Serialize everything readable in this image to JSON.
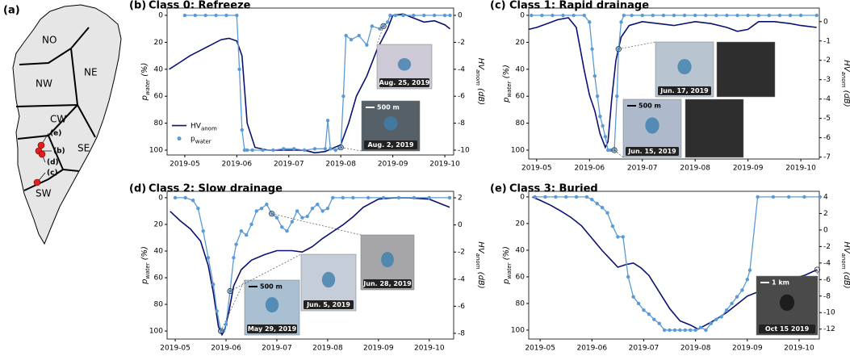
{
  "chart_data": [
    {
      "type": "line",
      "label": "(b)",
      "title": "Class 0: Refreeze",
      "xlim": [
        4.66,
        10.17
      ],
      "xticks": [
        {
          "value": 5,
          "label": "2019-05"
        },
        {
          "value": 6,
          "label": "2019-06"
        },
        {
          "value": 7,
          "label": "2019-07"
        },
        {
          "value": 8,
          "label": "2019-08"
        },
        {
          "value": 9,
          "label": "2019-09"
        },
        {
          "value": 10,
          "label": "2019-10"
        }
      ],
      "ylim": [
        103.6,
        -5.4
      ],
      "yticks": [
        0,
        20,
        40,
        60,
        80,
        100
      ],
      "ylabel": [
        "p",
        "water",
        " (%)"
      ],
      "y2lim": [
        -10.36,
        0.54
      ],
      "y2ticks": [
        0,
        -2,
        -4,
        -6,
        -8,
        -10
      ],
      "y2label": [
        "HV",
        "anom",
        " (dB)"
      ],
      "legend": "center-left",
      "series": [
        {
          "name": [
            "HV",
            "anom"
          ],
          "color": "#0b1170",
          "axis": "y2",
          "x": [
            4.7,
            4.9,
            5.1,
            5.3,
            5.5,
            5.7,
            5.85,
            6.0,
            6.1,
            6.2,
            6.35,
            6.6,
            7.0,
            7.3,
            7.5,
            7.7,
            8.0,
            8.15,
            8.3,
            8.5,
            8.7,
            8.9,
            9.0,
            9.2,
            9.4,
            9.6,
            9.8,
            10.0,
            10.1
          ],
          "values": [
            -4,
            -3.5,
            -3,
            -2.6,
            -2.2,
            -1.8,
            -1.7,
            -1.9,
            -3,
            -8,
            -9.8,
            -10,
            -10,
            -10,
            -10.2,
            -10.1,
            -9.6,
            -8,
            -6,
            -4.5,
            -2.5,
            -1,
            0,
            0.1,
            -0.2,
            -0.5,
            -0.4,
            -0.7,
            -1
          ]
        },
        {
          "name": [
            "p",
            "water"
          ],
          "color": "#5b9bd5",
          "markers": true,
          "x": [
            5.0,
            5.2,
            5.4,
            5.6,
            5.8,
            6.0,
            6.05,
            6.1,
            6.15,
            6.2,
            6.3,
            6.5,
            6.7,
            6.9,
            7.1,
            7.3,
            7.5,
            7.7,
            7.75,
            7.8,
            7.9,
            8.0,
            8.05,
            8.1,
            8.2,
            8.35,
            8.5,
            8.6,
            8.75,
            8.82,
            8.9,
            8.95,
            9.05,
            9.2,
            9.4,
            9.6,
            9.8,
            10.0,
            10.1
          ],
          "values": [
            0,
            0,
            0,
            0,
            0,
            0,
            40,
            85,
            100,
            100,
            100,
            100,
            100,
            99,
            99,
            100,
            99,
            99,
            78,
            99,
            100,
            98,
            60,
            15,
            18,
            15,
            22,
            8,
            10,
            8,
            5,
            0,
            0,
            0,
            0,
            0,
            0,
            0,
            0
          ]
        }
      ],
      "insets": [
        {
          "caption": "Aug. 25, 2019"
        },
        {
          "caption": "Aug. 2, 2019",
          "scale": "500 m"
        }
      ]
    },
    {
      "type": "line",
      "label": "(c)",
      "title": "Class 1: Rapid drainage",
      "xlim": [
        4.85,
        10.35
      ],
      "xticks": [
        {
          "value": 5,
          "label": "2019-05"
        },
        {
          "value": 6,
          "label": "2019-06"
        },
        {
          "value": 7,
          "label": "2019-07"
        },
        {
          "value": 8,
          "label": "2019-08"
        },
        {
          "value": 9,
          "label": "2019-09"
        },
        {
          "value": 10,
          "label": "2019-10"
        }
      ],
      "ylim": [
        106.6,
        -5.4
      ],
      "yticks": [
        0,
        20,
        40,
        60,
        80,
        100
      ],
      "ylabel": [
        "p",
        "water",
        " (%)"
      ],
      "y2lim": [
        -7.1,
        0.7
      ],
      "y2ticks": [
        0,
        -1,
        -2,
        -3,
        -4,
        -5,
        -6,
        -7
      ],
      "y2label": [
        "HV",
        "anom",
        " (dB)"
      ],
      "series": [
        {
          "name": [
            "HV",
            "anom"
          ],
          "color": "#0b1170",
          "axis": "y2",
          "x": [
            4.85,
            5.0,
            5.2,
            5.4,
            5.6,
            5.75,
            5.9,
            6.0,
            6.1,
            6.2,
            6.3,
            6.35,
            6.42,
            6.5,
            6.6,
            6.75,
            7.0,
            7.3,
            7.6,
            8.0,
            8.3,
            8.6,
            8.8,
            9.0,
            9.2,
            9.5,
            9.8,
            10.0,
            10.3
          ],
          "values": [
            -0.4,
            -0.3,
            -0.1,
            0.1,
            0.2,
            -0.3,
            -2.5,
            -3.8,
            -4.6,
            -5.8,
            -6.5,
            -6.2,
            -4,
            -2,
            -0.8,
            -0.2,
            0,
            -0.1,
            -0.2,
            0,
            -0.1,
            -0.3,
            -0.5,
            -0.4,
            0,
            0,
            -0.1,
            -0.2,
            -0.3
          ]
        },
        {
          "name": [
            "p",
            "water"
          ],
          "color": "#5b9bd5",
          "markers": true,
          "x": [
            4.9,
            5.1,
            5.3,
            5.5,
            5.7,
            5.9,
            6.0,
            6.05,
            6.1,
            6.15,
            6.2,
            6.25,
            6.3,
            6.35,
            6.4,
            6.47,
            6.52,
            6.55,
            6.6,
            6.65,
            6.8,
            7.0,
            7.2,
            7.4,
            7.6,
            7.8,
            8.0,
            8.2,
            8.4,
            8.6,
            8.8,
            9.0,
            9.2,
            9.4,
            9.6,
            9.8,
            10.0,
            10.3
          ],
          "values": [
            0,
            0,
            0,
            0,
            0,
            0,
            5,
            25,
            45,
            60,
            75,
            82,
            90,
            100,
            100,
            100,
            60,
            25,
            5,
            0,
            0,
            0,
            0,
            0,
            0,
            0,
            0,
            0,
            0,
            0,
            0,
            0,
            0,
            0,
            0,
            0,
            0,
            0
          ]
        }
      ],
      "insets": [
        {
          "caption": "Jun. 17, 2019"
        },
        {
          "caption": "Jun. 15, 2019",
          "scale": "500 m"
        }
      ]
    },
    {
      "type": "line",
      "label": "(d)",
      "title": "Class 2: Slow drainage",
      "xlim": [
        4.84,
        10.48
      ],
      "xticks": [
        {
          "value": 5,
          "label": "2019-05"
        },
        {
          "value": 6,
          "label": "2019-06"
        },
        {
          "value": 7,
          "label": "2019-07"
        },
        {
          "value": 8,
          "label": "2019-08"
        },
        {
          "value": 9,
          "label": "2019-09"
        },
        {
          "value": 10,
          "label": "2019-10"
        }
      ],
      "ylim": [
        106,
        -4.8
      ],
      "yticks": [
        0,
        20,
        40,
        60,
        80,
        100
      ],
      "ylabel": [
        "p",
        "water",
        " (%)"
      ],
      "y2lim": [
        -8.42,
        2.48
      ],
      "y2ticks": [
        2,
        0,
        -2,
        -4,
        -6,
        -8
      ],
      "y2label": [
        "HV",
        "anom",
        " (dB)"
      ],
      "series": [
        {
          "name": [
            "HV",
            "anom"
          ],
          "color": "#0b1170",
          "axis": "y2",
          "x": [
            4.9,
            5.1,
            5.3,
            5.5,
            5.65,
            5.75,
            5.85,
            5.92,
            5.97,
            6.05,
            6.15,
            6.3,
            6.5,
            6.75,
            7.0,
            7.3,
            7.5,
            7.7,
            7.9,
            8.1,
            8.3,
            8.5,
            8.7,
            9.0,
            9.3,
            9.6,
            10.0,
            10.4
          ],
          "values": [
            1,
            0.3,
            -0.3,
            -1.2,
            -3,
            -5,
            -7.5,
            -8.1,
            -7.8,
            -6.5,
            -4.5,
            -3.3,
            -2.6,
            -2.2,
            -1.9,
            -1.9,
            -2,
            -1.6,
            -1,
            -0.5,
            0,
            0.6,
            1.3,
            1.9,
            2,
            2,
            1.9,
            1.3
          ]
        },
        {
          "name": [
            "p",
            "water"
          ],
          "color": "#5b9bd5",
          "markers": true,
          "x": [
            5.0,
            5.2,
            5.35,
            5.45,
            5.55,
            5.65,
            5.75,
            5.82,
            5.9,
            5.95,
            6.0,
            6.08,
            6.15,
            6.2,
            6.3,
            6.4,
            6.5,
            6.6,
            6.7,
            6.8,
            6.9,
            7.0,
            7.1,
            7.2,
            7.3,
            7.4,
            7.5,
            7.6,
            7.7,
            7.8,
            7.9,
            8.0,
            8.1,
            8.3,
            8.5,
            8.8,
            9.1,
            9.4,
            9.7,
            10.0,
            10.4
          ],
          "values": [
            0,
            0,
            2,
            8,
            25,
            45,
            65,
            85,
            100,
            100,
            95,
            70,
            45,
            35,
            25,
            28,
            20,
            10,
            8,
            5,
            12,
            15,
            22,
            25,
            18,
            10,
            15,
            14,
            8,
            5,
            10,
            8,
            0,
            0,
            0,
            0,
            0,
            0,
            0,
            0,
            0
          ]
        }
      ],
      "insets": [
        {
          "caption": "May 29, 2019",
          "scale": "500 m"
        },
        {
          "caption": "Jun. 5, 2019"
        },
        {
          "caption": "Jun. 28, 2019"
        }
      ]
    },
    {
      "type": "line",
      "label": "(e)",
      "title": "Class 3: Buried",
      "xlim": [
        4.78,
        10.39
      ],
      "xticks": [
        {
          "value": 5,
          "label": "2019-05"
        },
        {
          "value": 6,
          "label": "2019-06"
        },
        {
          "value": 7,
          "label": "2019-07"
        },
        {
          "value": 8,
          "label": "2019-08"
        },
        {
          "value": 9,
          "label": "2019-09"
        },
        {
          "value": 10,
          "label": "2019-10"
        }
      ],
      "ylim": [
        106.7,
        -4.2
      ],
      "yticks": [
        0,
        20,
        40,
        60,
        80,
        100
      ],
      "ylabel": [
        "p",
        "water",
        " (%)"
      ],
      "y2lim": [
        -13.2,
        4.68
      ],
      "y2ticks": [
        4,
        2,
        0,
        -2,
        -4,
        -6,
        -8,
        -10,
        -12
      ],
      "y2label": [
        "HV",
        "anom",
        " (dB)"
      ],
      "series": [
        {
          "name": [
            "HV",
            "anom"
          ],
          "color": "#0b1170",
          "axis": "y2",
          "x": [
            4.85,
            5.0,
            5.2,
            5.4,
            5.6,
            5.8,
            6.0,
            6.2,
            6.35,
            6.5,
            6.65,
            6.8,
            6.95,
            7.1,
            7.3,
            7.5,
            7.7,
            7.9,
            8.05,
            8.2,
            8.4,
            8.6,
            8.8,
            9.0,
            9.2,
            9.5,
            9.8,
            10.1,
            10.35
          ],
          "values": [
            4,
            3.6,
            3,
            2.3,
            1.5,
            0.5,
            -1,
            -2.5,
            -3.5,
            -4.5,
            -4.2,
            -4,
            -4.6,
            -5.5,
            -7.5,
            -9.5,
            -11,
            -11.5,
            -12,
            -11.5,
            -10.8,
            -10,
            -9,
            -8,
            -7.5,
            -6.8,
            -6,
            -5.5,
            -4.8
          ]
        },
        {
          "name": [
            "p",
            "water"
          ],
          "color": "#5b9bd5",
          "markers": true,
          "x": [
            4.9,
            5.1,
            5.3,
            5.5,
            5.7,
            5.9,
            6.0,
            6.1,
            6.2,
            6.3,
            6.4,
            6.5,
            6.6,
            6.7,
            6.8,
            6.9,
            7.0,
            7.1,
            7.2,
            7.3,
            7.4,
            7.5,
            7.6,
            7.7,
            7.8,
            7.9,
            8.0,
            8.1,
            8.2,
            8.3,
            8.4,
            8.5,
            8.6,
            8.7,
            8.8,
            8.9,
            9.0,
            9.05,
            9.2,
            9.5,
            9.8,
            10.1,
            10.4
          ],
          "values": [
            0,
            0,
            0,
            0,
            0,
            0,
            2,
            5,
            8,
            12,
            22,
            30,
            30,
            60,
            75,
            80,
            85,
            88,
            92,
            95,
            100,
            100,
            100,
            100,
            100,
            100,
            100,
            98,
            100,
            95,
            92,
            90,
            85,
            80,
            75,
            70,
            62,
            55,
            0,
            0,
            0,
            0,
            0
          ]
        }
      ],
      "insets": [
        {
          "caption": "Oct 15 2019",
          "scale": "1 km"
        }
      ]
    }
  ],
  "map": {
    "label": "(a)",
    "regions": [
      "NO",
      "NE",
      "NW",
      "CW",
      "SE",
      "SW"
    ],
    "markers": [
      "(e)",
      "(b)",
      "(d)",
      "(c)"
    ]
  }
}
